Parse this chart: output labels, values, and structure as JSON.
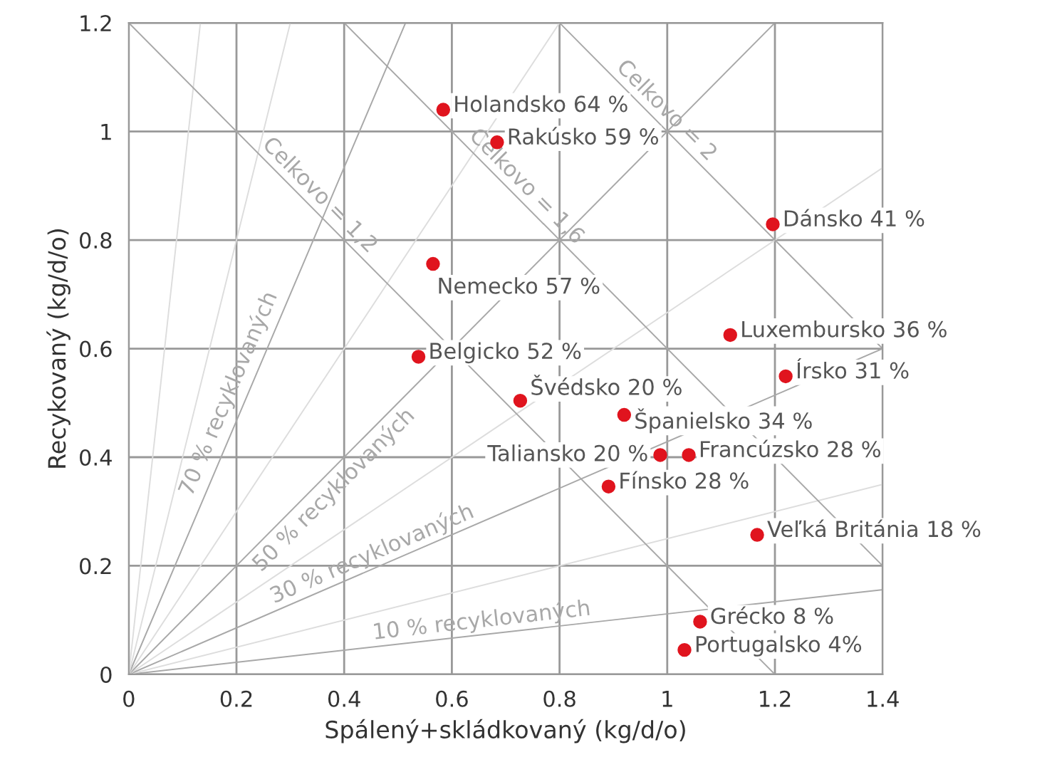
{
  "chart_data": {
    "type": "scatter",
    "xlabel": "Spálený+skládkovaný (kg/d/o)",
    "ylabel": "Recykovaný (kg/d/o)",
    "xlim": [
      0,
      1.4
    ],
    "ylim": [
      0,
      1.2
    ],
    "xticks": [
      0,
      0.2,
      0.4,
      0.6,
      0.8,
      1,
      1.2,
      1.4
    ],
    "yticks": [
      0,
      0.2,
      0.4,
      0.6,
      0.8,
      1,
      1.2
    ],
    "grid": true,
    "series": [
      {
        "type": "line",
        "name": "10 % recyklovaných",
        "color": "#a8a8a8",
        "x": [
          0,
          1.4
        ],
        "values": [
          0,
          0.156
        ]
      },
      {
        "type": "line",
        "color": "#dddddd",
        "x": [
          0,
          1.4
        ],
        "values": [
          0,
          0.35
        ]
      },
      {
        "type": "line",
        "name": "30 % recyklovaných",
        "color": "#a8a8a8",
        "x": [
          0,
          1.4
        ],
        "values": [
          0,
          0.6
        ]
      },
      {
        "type": "line",
        "color": "#dddddd",
        "x": [
          0,
          1.4
        ],
        "values": [
          0,
          0.933
        ]
      },
      {
        "type": "line",
        "name": "50 % recyklovaných",
        "color": "#a8a8a8",
        "x": [
          0,
          1.2
        ],
        "values": [
          0,
          1.2
        ]
      },
      {
        "type": "line",
        "color": "#dddddd",
        "x": [
          0,
          0.8
        ],
        "values": [
          0,
          1.2
        ]
      },
      {
        "type": "line",
        "name": "70 % recyklovaných",
        "color": "#a8a8a8",
        "x": [
          0,
          0.514
        ],
        "values": [
          0,
          1.2
        ]
      },
      {
        "type": "line",
        "color": "#dddddd",
        "x": [
          0,
          0.3
        ],
        "values": [
          0,
          1.2
        ]
      },
      {
        "type": "line",
        "color": "#dddddd",
        "x": [
          0,
          0.133
        ],
        "values": [
          0,
          1.2
        ]
      },
      {
        "type": "line",
        "name": "Celkovo = 1,2",
        "color": "#a8a8a8",
        "x": [
          0,
          1.2
        ],
        "values": [
          1.2,
          0
        ]
      },
      {
        "type": "line",
        "name": "Celkovo = 1,6",
        "color": "#a8a8a8",
        "x": [
          0.4,
          1.4
        ],
        "values": [
          1.2,
          0.2
        ]
      },
      {
        "type": "line",
        "name": "Celkovo = 2",
        "color": "#a8a8a8",
        "x": [
          0.8,
          1.4
        ],
        "values": [
          1.2,
          0.6
        ]
      },
      {
        "type": "scatter",
        "marker": "circle",
        "color": "#e0141e",
        "x": [
          0.584,
          0.684,
          0.565,
          0.538,
          0.727,
          0.92,
          0.987,
          1.04,
          0.891,
          1.167,
          1.061,
          1.032,
          1.196,
          1.117,
          1.22
        ],
        "values": [
          1.04,
          0.98,
          0.756,
          0.585,
          0.504,
          0.478,
          0.404,
          0.404,
          0.346,
          0.257,
          0.097,
          0.045,
          0.829,
          0.625,
          0.549
        ]
      }
    ],
    "annotations": [
      {
        "text": "Holandsko 64 %",
        "x": 0.584,
        "y": 1.04
      },
      {
        "text": "Rakúsko 59 %",
        "x": 0.684,
        "y": 0.98
      },
      {
        "text": "Nemecko 57 %",
        "x": 0.565,
        "y": 0.756
      },
      {
        "text": "Belgicko 52 %",
        "x": 0.538,
        "y": 0.585
      },
      {
        "text": "Švédsko 20 %",
        "x": 0.727,
        "y": 0.504
      },
      {
        "text": "Španielsko 34 %",
        "x": 0.92,
        "y": 0.478
      },
      {
        "text": "Taliansko 20 %",
        "x": 0.987,
        "y": 0.404
      },
      {
        "text": "Francúzsko 28 %",
        "x": 1.04,
        "y": 0.404
      },
      {
        "text": "Fínsko 28 %",
        "x": 0.891,
        "y": 0.346
      },
      {
        "text": "Veľká Británia 18 %",
        "x": 1.167,
        "y": 0.257
      },
      {
        "text": "Grécko 8 %",
        "x": 1.061,
        "y": 0.097
      },
      {
        "text": "Portugalsko 4%",
        "x": 1.032,
        "y": 0.045
      },
      {
        "text": "Dánsko 41 %",
        "x": 1.196,
        "y": 0.829
      },
      {
        "text": "Luxembursko 36 %",
        "x": 1.117,
        "y": 0.625
      },
      {
        "text": "Írsko 31 %",
        "x": 1.22,
        "y": 0.549
      }
    ]
  }
}
